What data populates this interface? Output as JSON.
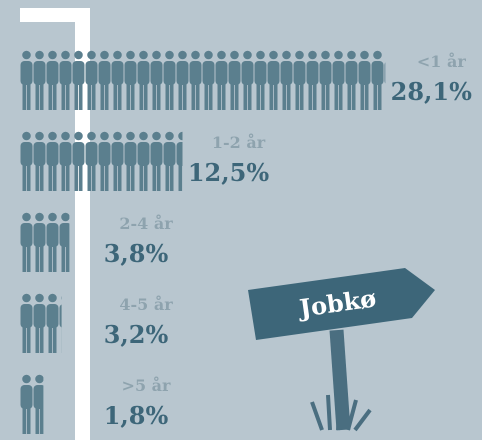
{
  "chart_data": {
    "type": "pictogram",
    "categories": [
      "<1 år",
      "1-2 år",
      "2-4 år",
      "4-5 år",
      ">5 år"
    ],
    "values": [
      28.1,
      12.5,
      3.8,
      3.2,
      1.8
    ],
    "value_labels": [
      "28,1%",
      "12,5%",
      "3,8%",
      "3,2%",
      "1,8%"
    ],
    "color": "#5b7f8e",
    "sign": "Jobkø"
  }
}
